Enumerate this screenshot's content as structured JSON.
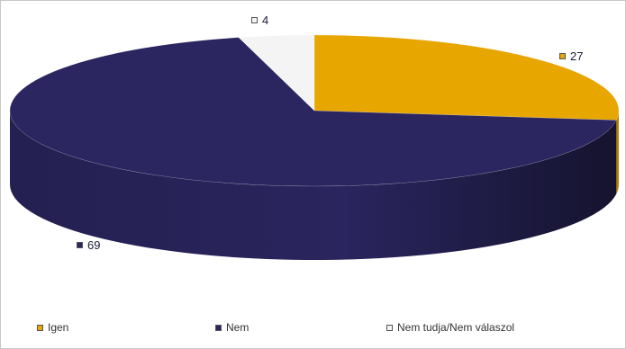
{
  "chart_data": {
    "type": "pie",
    "style": "3d",
    "title": "",
    "series": [
      {
        "name": "Igen",
        "value": 27,
        "color": "#e8a600"
      },
      {
        "name": "Nem",
        "value": 69,
        "color": "#2b2660"
      },
      {
        "name": "Nem tudja/Nem válaszol",
        "value": 4,
        "color": "#f4f4f4"
      }
    ],
    "value_labels": [
      "27",
      "69",
      "4"
    ],
    "legend_position": "bottom"
  }
}
